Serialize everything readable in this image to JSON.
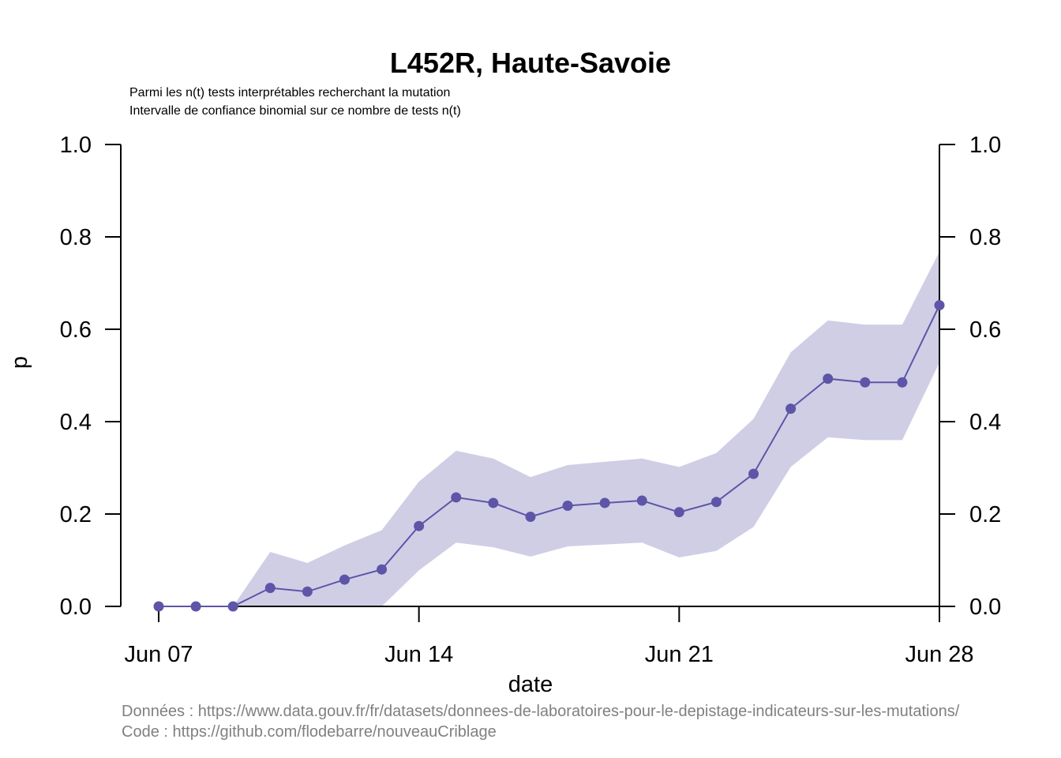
{
  "chart_data": {
    "type": "line",
    "title": "L452R, Haute-Savoie",
    "subtitle_lines": [
      "Parmi les n(t) tests interprétables recherchant la mutation",
      "Intervalle de confiance binomial sur ce nombre de tests n(t)"
    ],
    "xlabel": "date",
    "ylabel": "p",
    "xticks": [
      "Jun 07",
      "Jun 14",
      "Jun 21",
      "Jun 28"
    ],
    "xtick_days": [
      7,
      14,
      21,
      28
    ],
    "xlim": [
      7,
      28
    ],
    "yticks": [
      "0.0",
      "0.2",
      "0.4",
      "0.6",
      "0.8",
      "1.0"
    ],
    "ylim": [
      0,
      1
    ],
    "series": [
      {
        "color": "#5e55a8",
        "ci_color": "#d0cee5",
        "x": [
          7,
          8,
          9,
          10,
          11,
          12,
          13,
          14,
          15,
          16,
          17,
          18,
          19,
          20,
          21,
          22,
          23,
          24,
          25,
          26,
          27,
          28
        ],
        "values": [
          0.0,
          0.0,
          0.0,
          0.04,
          0.032,
          0.058,
          0.08,
          0.174,
          0.236,
          0.224,
          0.194,
          0.218,
          0.224,
          0.229,
          0.204,
          0.226,
          0.287,
          0.428,
          0.493,
          0.485,
          0.485,
          0.652
        ],
        "lower": [
          0.0,
          0.0,
          0.0,
          0.0,
          0.0,
          0.0,
          0.0,
          0.078,
          0.138,
          0.128,
          0.108,
          0.13,
          0.134,
          0.138,
          0.106,
          0.12,
          0.172,
          0.302,
          0.366,
          0.36,
          0.36,
          0.528
        ],
        "upper": [
          0.0,
          0.0,
          0.0,
          0.118,
          0.094,
          0.132,
          0.165,
          0.27,
          0.337,
          0.32,
          0.28,
          0.306,
          0.313,
          0.32,
          0.302,
          0.332,
          0.406,
          0.55,
          0.619,
          0.61,
          0.61,
          0.768
        ]
      }
    ]
  },
  "footer": {
    "source": "Données : https://www.data.gouv.fr/fr/datasets/donnees-de-laboratoires-pour-le-depistage-indicateurs-sur-les-mutations/",
    "code": "Code : https://github.com/flodebarre/nouveauCriblage"
  }
}
